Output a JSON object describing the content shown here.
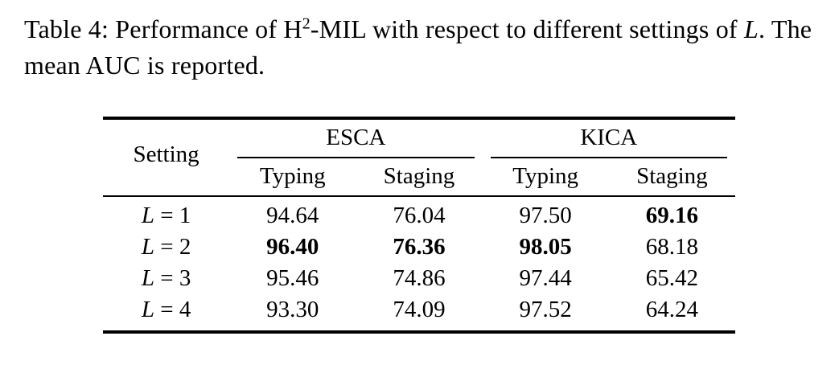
{
  "caption": {
    "prefix": "Table 4: Performance of H",
    "superscript": "2",
    "mid": "-MIL with respect to different settings of ",
    "variable": "L",
    "suffix": ". The mean AUC is reported."
  },
  "table": {
    "setting_header": "Setting",
    "groups": [
      "ESCA",
      "KICA"
    ],
    "subheaders": [
      "Typing",
      "Staging",
      "Typing",
      "Staging"
    ],
    "rows": [
      {
        "var": "L",
        "eq": "= 1",
        "values": [
          "94.64",
          "76.04",
          "97.50",
          "69.16"
        ]
      },
      {
        "var": "L",
        "eq": "= 2",
        "values": [
          "96.40",
          "76.36",
          "98.05",
          "68.18"
        ]
      },
      {
        "var": "L",
        "eq": "= 3",
        "values": [
          "95.46",
          "74.86",
          "97.44",
          "65.42"
        ]
      },
      {
        "var": "L",
        "eq": "= 4",
        "values": [
          "93.30",
          "74.09",
          "97.52",
          "64.24"
        ]
      }
    ],
    "bold_cells": [
      [
        0,
        3
      ],
      [
        1,
        0
      ],
      [
        1,
        1
      ],
      [
        1,
        2
      ]
    ]
  }
}
